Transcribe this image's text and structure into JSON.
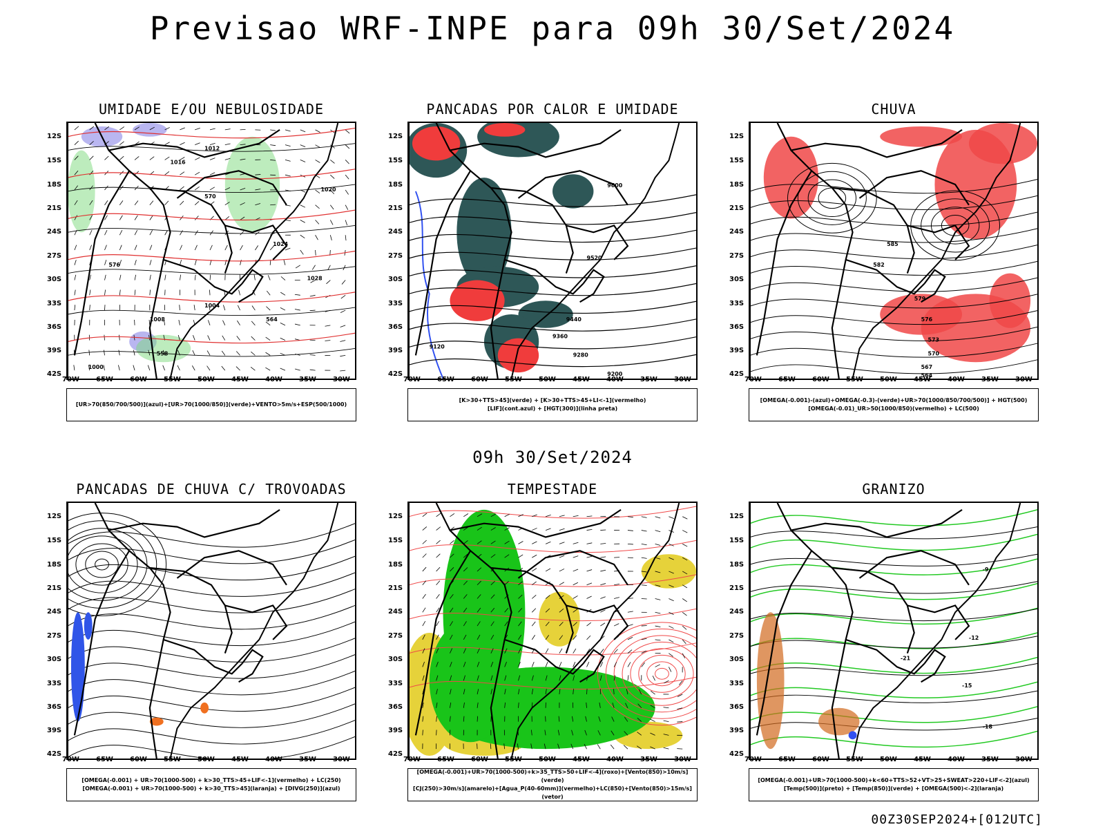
{
  "header": {
    "title": "Previsao WRF-INPE  para 09h 30/Set/2024",
    "subtitle": "09h 30/Set/2024"
  },
  "footer": {
    "run": "00Z30SEP2024+[012UTC]"
  },
  "axes": {
    "lat_labels": [
      "12S",
      "15S",
      "18S",
      "21S",
      "24S",
      "27S",
      "30S",
      "33S",
      "36S",
      "39S",
      "42S"
    ],
    "lon_labels": [
      "70W",
      "65W",
      "60W",
      "55W",
      "50W",
      "45W",
      "40W",
      "35W",
      "30W"
    ]
  },
  "panels": [
    {
      "title": "UMIDADE E/OU NEBULOSIDADE",
      "legend": [
        "[UR>70(850/700/500)](azul)+[UR>70(1000/850)](verde)+VENTO>5m/s+ESP(500/1000)"
      ]
    },
    {
      "title": "PANCADAS POR CALOR E UMIDADE",
      "legend": [
        "[K>30+TTS>45](verde)  +  [K>30+TTS>45+LI<-1](vermelho)",
        "[LIF](cont.azul)  +  [HGT(300)](linha preta)"
      ]
    },
    {
      "title": "CHUVA",
      "legend": [
        "[OMEGA(-0.001)-(azul)+OMEGA(-0.3)-(verde)+UR>70(1000/850/700/500)]  +  HGT(500)",
        "[OMEGA(-0.01)_UR>50(1000/850)(vermelho)  +  LC(500)"
      ]
    },
    {
      "title": "PANCADAS DE CHUVA C/ TROVOADAS",
      "legend": [
        "[OMEGA(-0.001)  +  UR>70(1000-500)  +  k>30_TTS>45+LIF<-1](vermelho)  +  LC(250)",
        "[OMEGA(-0.001)  +  UR>70(1000-500)  +  k>30_TTS>45](laranja)  +  [DIVG(250)](azul)"
      ]
    },
    {
      "title": "TEMPESTADE",
      "legend": [
        "[OMEGA(-0.001)+UR>70(1000-500)+k>35_TTS>50+LIF<-4](roxo)+[Vento(850)>10m/s](verde)",
        "[CJ(250)>30m/s](amarelo)+[Agua_P(40-60mm)](vermelho)+LC(850)+[Vento(850)>15m/s](vetor)"
      ]
    },
    {
      "title": "GRANIZO",
      "legend": [
        "[OMEGA(-0.001)+UR>70(1000-500)+k<60+TTS>52+VT>25+SWEAT>220+LIF<-2](azul)",
        "[Temp(500)](preto)  +  [Temp(850)](verde)  +  [OMEGA(500)<-2](laranja)"
      ]
    }
  ],
  "contour_labels": {
    "p1": [
      "1012",
      "1016",
      "1020",
      "1024",
      "1028",
      "1008",
      "1004",
      "1000",
      "576",
      "570",
      "564",
      "558"
    ],
    "p2": [
      "9600",
      "9520",
      "9440",
      "9360",
      "9280",
      "9200",
      "9120"
    ],
    "p3": [
      "585",
      "582",
      "579",
      "576",
      "573",
      "570",
      "567",
      "564"
    ],
    "p6": [
      "-9",
      "-12",
      "-15",
      "-18",
      "-21"
    ]
  }
}
